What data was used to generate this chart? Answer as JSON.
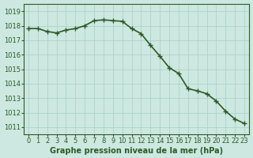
{
  "x": [
    0,
    1,
    2,
    3,
    4,
    5,
    6,
    7,
    8,
    9,
    10,
    11,
    12,
    13,
    14,
    15,
    16,
    17,
    18,
    19,
    20,
    21,
    22,
    23
  ],
  "y": [
    1017.8,
    1017.8,
    1017.6,
    1017.5,
    1017.7,
    1017.8,
    1018.0,
    1018.35,
    1018.4,
    1018.35,
    1018.3,
    1017.8,
    1017.45,
    1016.65,
    1015.9,
    1015.1,
    1014.7,
    1013.65,
    1013.5,
    1013.3,
    1012.8,
    1012.1,
    1011.55,
    1011.25
  ],
  "line_color": "#2d5a27",
  "marker": "+",
  "background_color": "#cce8e0",
  "grid_color": "#a8cfc4",
  "xlabel": "Graphe pression niveau de la mer (hPa)",
  "xlabel_color": "#2d5a27",
  "tick_color": "#2d5a27",
  "ylim": [
    1010.5,
    1019.5
  ],
  "yticks": [
    1011,
    1012,
    1013,
    1014,
    1015,
    1016,
    1017,
    1018,
    1019
  ],
  "xlim": [
    -0.5,
    23.5
  ],
  "xticks": [
    0,
    1,
    2,
    3,
    4,
    5,
    6,
    7,
    8,
    9,
    10,
    11,
    12,
    13,
    14,
    15,
    16,
    17,
    18,
    19,
    20,
    21,
    22,
    23
  ],
  "spine_color": "#2d5a27",
  "markersize": 4,
  "linewidth": 1.2,
  "fontsize_xlabel": 7,
  "fontsize_ticks": 6
}
